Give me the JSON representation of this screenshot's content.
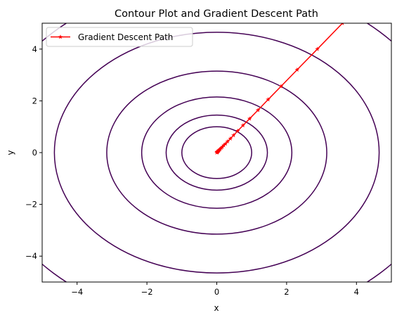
{
  "chart_data": {
    "type": "line",
    "title": "Contour Plot and Gradient Descent Path",
    "xlabel": "x",
    "ylabel": "y",
    "xlim": [
      -5,
      5
    ],
    "ylim": [
      -5,
      5
    ],
    "x_ticks": [
      -4,
      -2,
      0,
      2,
      4
    ],
    "y_ticks": [
      -4,
      -2,
      0,
      2,
      4
    ],
    "x_tick_labels": [
      "−4",
      "−2",
      "0",
      "2",
      "4"
    ],
    "y_tick_labels": [
      "−4",
      "−2",
      "0",
      "2",
      "4"
    ],
    "grid": false,
    "legend_position": "upper-left",
    "contours": {
      "color": "#440154",
      "radii_x": [
        1.0,
        1.45,
        2.15,
        3.15,
        4.65,
        6.6
      ],
      "radii_y": [
        1.0,
        1.45,
        2.15,
        3.15,
        4.65,
        6.6
      ]
    },
    "series": [
      {
        "name": "Gradient Descent Path",
        "color": "#ff0000",
        "marker": "star",
        "x": [
          3.6,
          2.88,
          2.3,
          1.84,
          1.47,
          1.18,
          0.94,
          0.75,
          0.6,
          0.48,
          0.39,
          0.31,
          0.25,
          0.2,
          0.16,
          0.13,
          0.1,
          0.08,
          0.06,
          0.05,
          0.04,
          0.03,
          0.02,
          0.015,
          0.01,
          0.005,
          0.0
        ],
        "y": [
          5.0,
          4.0,
          3.2,
          2.56,
          2.05,
          1.64,
          1.31,
          1.05,
          0.84,
          0.67,
          0.54,
          0.43,
          0.34,
          0.28,
          0.22,
          0.18,
          0.14,
          0.11,
          0.09,
          0.07,
          0.06,
          0.045,
          0.035,
          0.025,
          0.015,
          0.008,
          0.0
        ]
      }
    ]
  }
}
